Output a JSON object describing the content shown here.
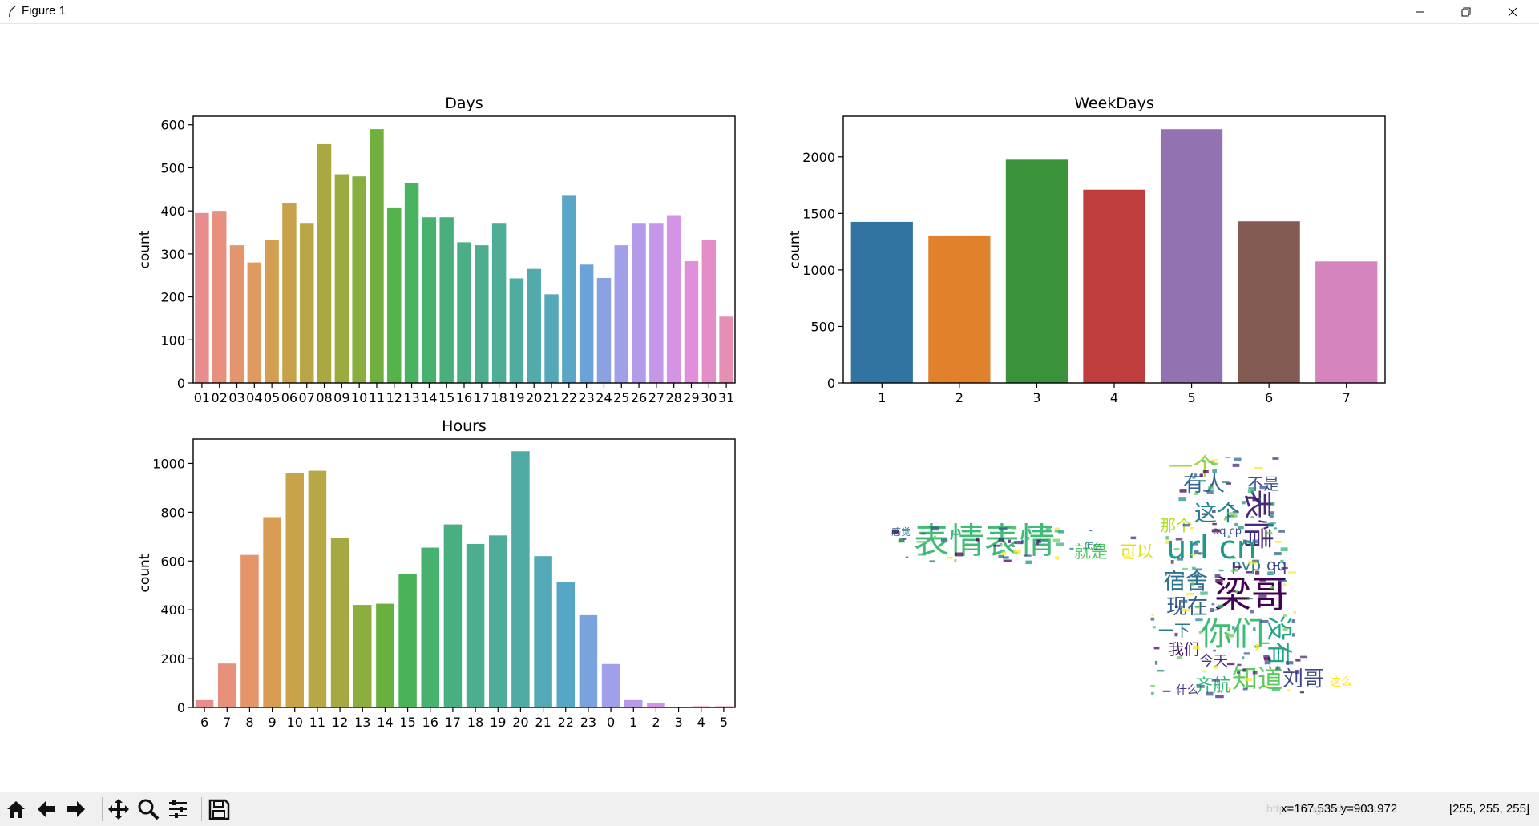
{
  "window": {
    "title": "Figure 1"
  },
  "colors": {
    "days": [
      "#e98c8e",
      "#e7907e",
      "#e5956d",
      "#e0995f",
      "#d49e53",
      "#c8a24a",
      "#baa646",
      "#aba842",
      "#9bab40",
      "#88ae3f",
      "#71b03e",
      "#56b24b",
      "#49b35f",
      "#47b26f",
      "#49b07b",
      "#4baf85",
      "#4cae8e",
      "#4ead96",
      "#4faca0",
      "#51aaab",
      "#54a8b8",
      "#59a6c6",
      "#6aa3d8",
      "#8aa2e2",
      "#a19fe8",
      "#b39be9",
      "#c597e9",
      "#d493e5",
      "#e08fdb",
      "#e48ec8",
      "#e78eb4"
    ],
    "weekdays": [
      "#3174a1",
      "#e1812c",
      "#3a923a",
      "#c03d3e",
      "#9372b2",
      "#845b53",
      "#d684bd"
    ],
    "hours": [
      "#e98c8e",
      "#e7917c",
      "#e4966a",
      "#d89d52",
      "#c9a34a",
      "#b8a745",
      "#a4aa41",
      "#8cae3f",
      "#6ab03f",
      "#4ab357",
      "#47b26f",
      "#49af81",
      "#4cae8e",
      "#4ead99",
      "#50aba6",
      "#53a9b5",
      "#58a6c6",
      "#7aa3dd",
      "#a09fe9",
      "#b99ae9",
      "#d293e6",
      "#e18fd7",
      "#e58ec3",
      "#e78eb1"
    ]
  },
  "chart_data": [
    {
      "type": "bar",
      "title": "Days",
      "xlabel": "",
      "ylabel": "count",
      "categories": [
        "01",
        "02",
        "03",
        "04",
        "05",
        "06",
        "07",
        "08",
        "09",
        "10",
        "11",
        "12",
        "13",
        "14",
        "15",
        "16",
        "17",
        "18",
        "19",
        "20",
        "21",
        "22",
        "23",
        "24",
        "25",
        "26",
        "27",
        "28",
        "29",
        "30",
        "31"
      ],
      "values": [
        395,
        400,
        320,
        280,
        333,
        418,
        372,
        555,
        485,
        480,
        590,
        408,
        465,
        385,
        385,
        327,
        320,
        372,
        243,
        265,
        206,
        435,
        275,
        244,
        320,
        372,
        372,
        390,
        283,
        333,
        154
      ],
      "ylim": [
        0,
        620
      ],
      "yticks": [
        0,
        100,
        200,
        300,
        400,
        500,
        600
      ]
    },
    {
      "type": "bar",
      "title": "WeekDays",
      "xlabel": "",
      "ylabel": "count",
      "categories": [
        "1",
        "2",
        "3",
        "4",
        "5",
        "6",
        "7"
      ],
      "values": [
        1425,
        1305,
        1975,
        1710,
        2245,
        1430,
        1075
      ],
      "ylim": [
        0,
        2360
      ],
      "yticks": [
        0,
        500,
        1000,
        1500,
        2000
      ]
    },
    {
      "type": "bar",
      "title": "Hours",
      "xlabel": "",
      "ylabel": "count",
      "categories": [
        "6",
        "7",
        "8",
        "9",
        "10",
        "11",
        "12",
        "13",
        "14",
        "15",
        "16",
        "17",
        "18",
        "19",
        "20",
        "21",
        "22",
        "23",
        "0",
        "1",
        "2",
        "3",
        "4",
        "5"
      ],
      "values": [
        30,
        180,
        625,
        780,
        960,
        970,
        695,
        420,
        425,
        545,
        655,
        750,
        670,
        705,
        1050,
        620,
        515,
        378,
        178,
        30,
        18,
        2,
        5,
        5
      ],
      "ylim": [
        0,
        1100
      ],
      "yticks": [
        0,
        200,
        400,
        600,
        800,
        1000
      ]
    }
  ],
  "wordcloud": {
    "words": [
      "表情表情",
      "就是",
      "可以",
      "一个",
      "有人",
      "不是",
      "这个",
      "那个",
      "表情",
      "url cn",
      "pvp",
      "qq",
      "宿舍",
      "梁哥",
      "现在",
      "你们",
      "没有",
      "一下",
      "我们",
      "今天",
      "知道",
      "刘哥",
      "齐航",
      "什么",
      "qq cp",
      "这么",
      "怎么",
      "感觉"
    ]
  },
  "toolbar": {
    "buttons": [
      "home-icon",
      "back-icon",
      "forward-icon",
      "pan-icon",
      "zoom-icon",
      "configure-subplots-icon",
      "save-icon"
    ],
    "coords": "x=167.535    y=903.972",
    "pixel": "[255, 255, 255]"
  }
}
